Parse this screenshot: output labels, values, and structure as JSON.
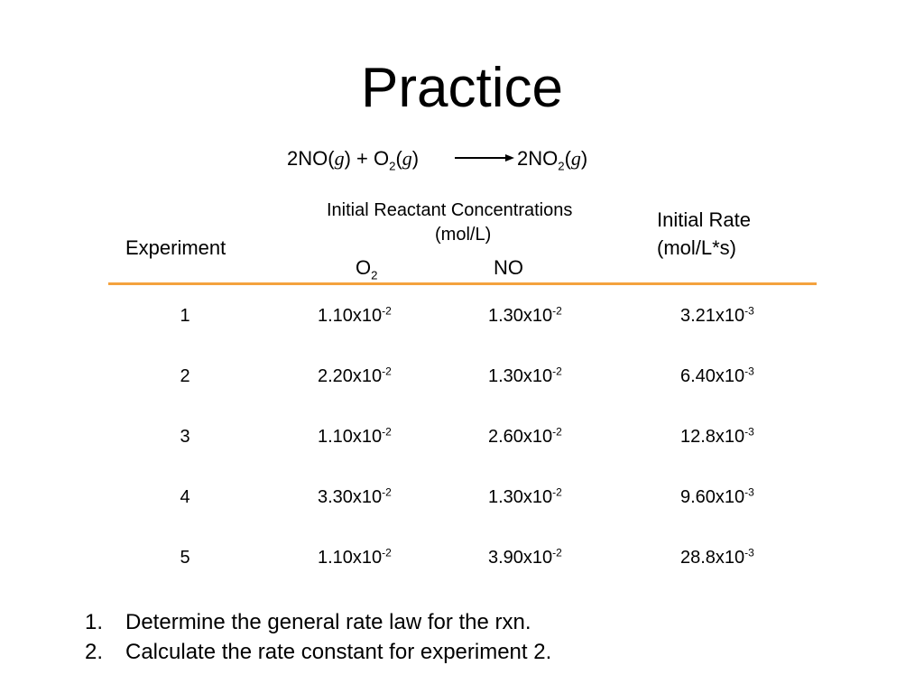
{
  "title": "Practice",
  "colors": {
    "accent": "#F4A23E"
  },
  "equation": {
    "reactant1": {
      "base": "2NO(",
      "state": "g",
      "close": ")"
    },
    "plus": "+",
    "reactant2": {
      "base": "O",
      "sub": "2",
      "open": "(",
      "state": "g",
      "close": ")"
    },
    "product": {
      "base": "2NO",
      "sub": "2",
      "open": "(",
      "state": "g",
      "close": ")"
    },
    "arrow_icon": "right-arrow-icon"
  },
  "table": {
    "headers": {
      "experiment": "Experiment",
      "concentrations_line1": "Initial Reactant Concentrations",
      "concentrations_line2": "(mol/L)",
      "o2": {
        "base": "O",
        "sub": "2"
      },
      "no": "NO",
      "rate_line1": "Initial Rate",
      "rate_line2": "(mol/L*s)"
    },
    "rows": [
      {
        "experiment": "1",
        "o2": {
          "mantissa": "1.10x10",
          "exp": "-2"
        },
        "no": {
          "mantissa": "1.30x10",
          "exp": "-2"
        },
        "rate": {
          "mantissa": "3.21x10",
          "exp": "-3"
        }
      },
      {
        "experiment": "2",
        "o2": {
          "mantissa": "2.20x10",
          "exp": "-2"
        },
        "no": {
          "mantissa": "1.30x10",
          "exp": "-2"
        },
        "rate": {
          "mantissa": "6.40x10",
          "exp": "-3"
        }
      },
      {
        "experiment": "3",
        "o2": {
          "mantissa": "1.10x10",
          "exp": "-2"
        },
        "no": {
          "mantissa": "2.60x10",
          "exp": "-2"
        },
        "rate": {
          "mantissa": "12.8x10",
          "exp": "-3"
        }
      },
      {
        "experiment": "4",
        "o2": {
          "mantissa": "3.30x10",
          "exp": "-2"
        },
        "no": {
          "mantissa": "1.30x10",
          "exp": "-2"
        },
        "rate": {
          "mantissa": "9.60x10",
          "exp": "-3"
        }
      },
      {
        "experiment": "5",
        "o2": {
          "mantissa": "1.10x10",
          "exp": "-2"
        },
        "no": {
          "mantissa": "3.90x10",
          "exp": "-2"
        },
        "rate": {
          "mantissa": "28.8x10",
          "exp": "-3"
        }
      }
    ]
  },
  "questions": [
    {
      "number": "1.",
      "text": "Determine the general rate law for the rxn."
    },
    {
      "number": "2.",
      "text": "Calculate the rate constant for experiment 2."
    }
  ]
}
